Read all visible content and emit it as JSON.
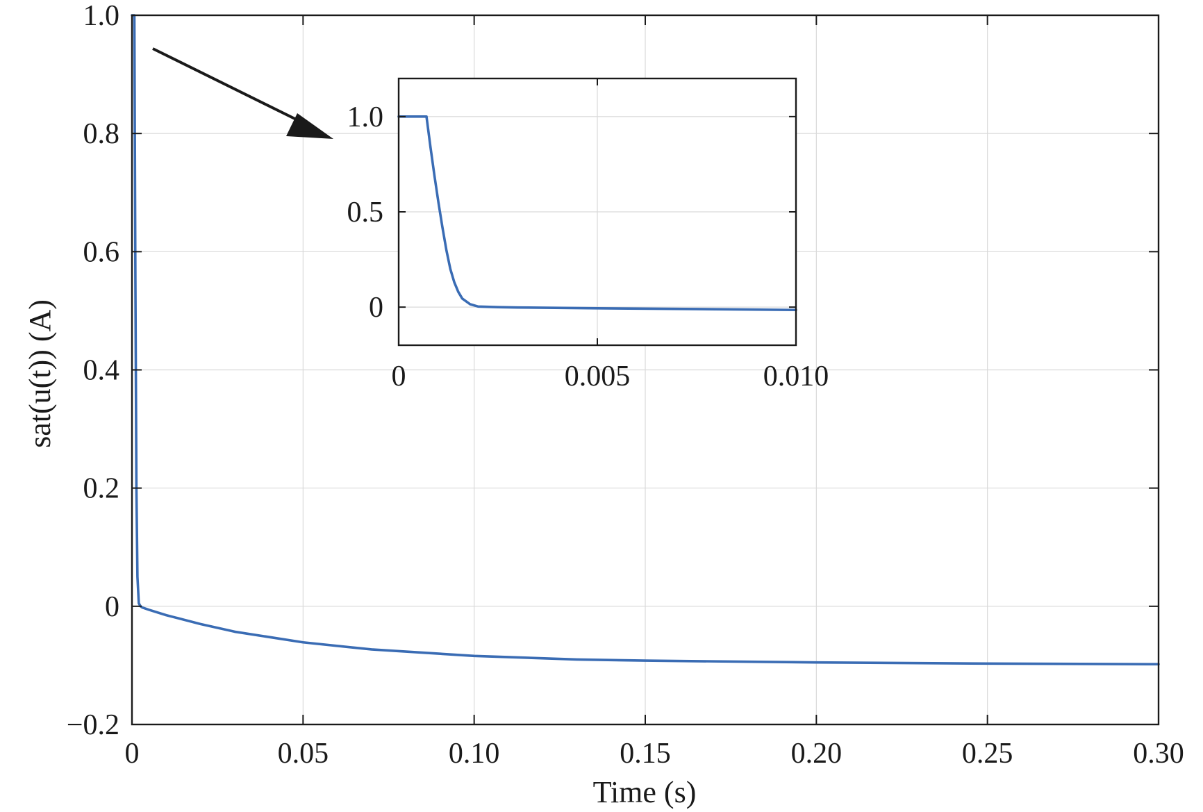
{
  "chart_data": [
    {
      "type": "line",
      "role": "main",
      "xlabel": "Time (s)",
      "ylabel": "sat(u(t)) (A)",
      "xlim": [
        0,
        0.3
      ],
      "ylim": [
        -0.2,
        1.0
      ],
      "x_ticks": [
        0,
        0.05,
        0.1,
        0.15,
        0.2,
        0.25,
        0.3
      ],
      "x_tick_labels": [
        "0",
        "0.05",
        "0.10",
        "0.15",
        "0.20",
        "0.25",
        "0.30"
      ],
      "y_ticks": [
        -0.2,
        0,
        0.2,
        0.4,
        0.6,
        0.8,
        1.0
      ],
      "y_tick_labels": [
        "−0.2",
        "0",
        "0.2",
        "0.4",
        "0.6",
        "0.8",
        "1.0"
      ],
      "grid": true,
      "series": [
        {
          "color": "#3a6cb4",
          "x": [
            0,
            0.0007,
            0.001,
            0.0013,
            0.0016,
            0.002,
            0.0025,
            0.003,
            0.005,
            0.01,
            0.02,
            0.03,
            0.05,
            0.07,
            0.1,
            0.13,
            0.15,
            0.2,
            0.25,
            0.3
          ],
          "y": [
            1.0,
            1.0,
            0.55,
            0.2,
            0.05,
            0.005,
            0.0,
            -0.002,
            -0.006,
            -0.015,
            -0.03,
            -0.043,
            -0.061,
            -0.073,
            -0.084,
            -0.09,
            -0.092,
            -0.095,
            -0.097,
            -0.098
          ]
        }
      ]
    },
    {
      "type": "line",
      "role": "inset",
      "xlim": [
        0,
        0.01
      ],
      "ylim": [
        -0.2,
        1.2
      ],
      "x_ticks": [
        0,
        0.005,
        0.01
      ],
      "x_tick_labels": [
        "0",
        "0.005",
        "0.010"
      ],
      "y_ticks": [
        0,
        0.5,
        1.0
      ],
      "y_tick_labels": [
        "0",
        "0.5",
        "1.0"
      ],
      "grid": true,
      "series": [
        {
          "color": "#3a6cb4",
          "x": [
            0,
            0.0007,
            0.0008,
            0.0009,
            0.001,
            0.0011,
            0.0012,
            0.0013,
            0.0014,
            0.0015,
            0.0016,
            0.0018,
            0.002,
            0.0025,
            0.003,
            0.005,
            0.0075,
            0.01
          ],
          "y": [
            1.0,
            1.0,
            0.84,
            0.69,
            0.55,
            0.42,
            0.3,
            0.2,
            0.13,
            0.08,
            0.045,
            0.015,
            0.003,
            0.0,
            -0.002,
            -0.006,
            -0.01,
            -0.015
          ]
        }
      ]
    }
  ]
}
